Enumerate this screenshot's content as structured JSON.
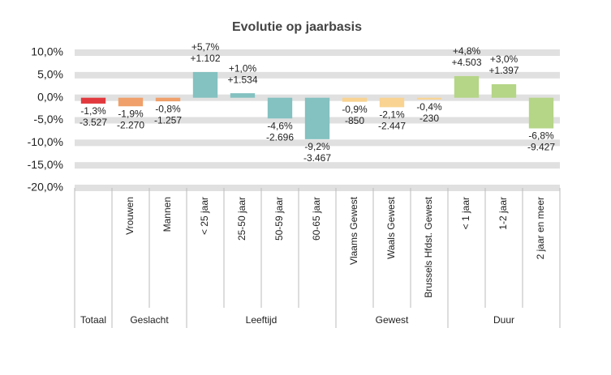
{
  "chart_data": {
    "type": "bar",
    "title": "Evolutie op jaarbasis",
    "categories": [
      null,
      "Vrouwen",
      "Mannen",
      "< 25 jaar",
      "25-50 jaar",
      "50-59 jaar",
      "60-65 jaar",
      "Vlaams Gewest",
      "Waals Gewest",
      "Brussels Hfdst. Gewest",
      "< 1 jaar",
      "1-2 jaar",
      "2 jaar en meer"
    ],
    "values": [
      -1.3,
      -1.9,
      -0.8,
      5.7,
      1.0,
      -4.6,
      -9.2,
      -0.9,
      -2.1,
      -0.4,
      4.8,
      3.0,
      -6.8
    ],
    "value_labels": [
      "-1,3%",
      "-1,9%",
      "-0,8%",
      "+5,7%",
      "+1,0%",
      "-4,6%",
      "-9,2%",
      "-0,9%",
      "-2,1%",
      "-0,4%",
      "+4,8%",
      "+3,0%",
      "-6,8%"
    ],
    "count_labels": [
      "-3.527",
      "-2.270",
      "-1.257",
      "+1.102",
      "+1.534",
      "-2.696",
      "-3.467",
      "-850",
      "-2.447",
      "-230",
      "+4.503",
      "+1.397",
      "-9.427"
    ],
    "colors": [
      "#e2393e",
      "#f0a06a",
      "#f0a06a",
      "#84c1c1",
      "#84c1c1",
      "#84c1c1",
      "#84c1c1",
      "#f9d391",
      "#f9d391",
      "#f9d391",
      "#b5d587",
      "#b5d587",
      "#b5d587"
    ],
    "groups": [
      {
        "name": "Totaal",
        "count": 1
      },
      {
        "name": "Geslacht",
        "count": 2
      },
      {
        "name": "Leeftijd",
        "count": 4
      },
      {
        "name": "Gewest",
        "count": 3
      },
      {
        "name": "Duur",
        "count": 3
      }
    ],
    "ylim": [
      -20,
      10
    ],
    "yticks": [
      {
        "value": 10,
        "label": "10,0%"
      },
      {
        "value": 5,
        "label": "5,0%"
      },
      {
        "value": 0,
        "label": "0,0%"
      },
      {
        "value": -5,
        "label": "-5,0%"
      },
      {
        "value": -10,
        "label": "-10,0%"
      },
      {
        "value": -15,
        "label": "-15,0%"
      },
      {
        "value": -20,
        "label": "-20,0%"
      }
    ],
    "grid": true
  }
}
